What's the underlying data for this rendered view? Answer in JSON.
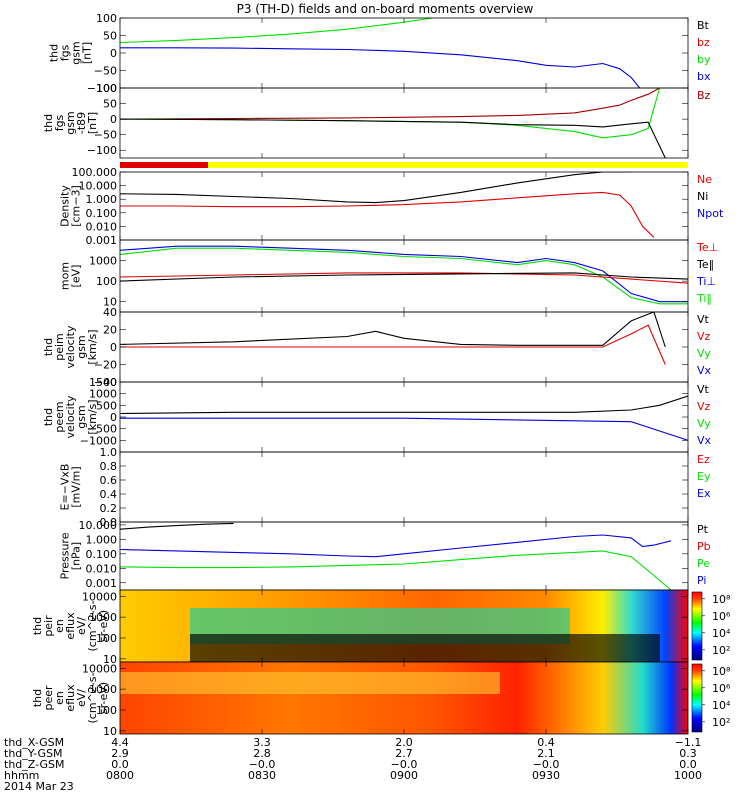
{
  "title": "P3 (TH-D) fields and on-board moments overview",
  "colors": {
    "black": "#000000",
    "red": "#e00000",
    "green": "#00e000",
    "blue": "#0000e0",
    "darkred": "#a00000",
    "yellow": "#ffff00"
  },
  "chart_data": [
    {
      "type": "line",
      "ylabel_lines": [
        "thd",
        "fgs",
        "gsm",
        "[nT]"
      ],
      "ylim": [
        -100,
        100
      ],
      "yscale": "linear",
      "yticks": [
        "100",
        "50",
        "0",
        "−50",
        "−100"
      ],
      "ytick_values": [
        100,
        50,
        0,
        -50,
        -100
      ],
      "legend": [
        {
          "label": "Bt",
          "color": "black"
        },
        {
          "label": "bz",
          "color": "red"
        },
        {
          "label": "by",
          "color": "green"
        },
        {
          "label": "bx",
          "color": "blue"
        }
      ],
      "series": [
        {
          "name": "by",
          "color": "green",
          "x": [
            0,
            0.1,
            0.2,
            0.3,
            0.4,
            0.5,
            0.55
          ],
          "y": [
            30,
            36,
            44,
            54,
            68,
            88,
            100
          ]
        },
        {
          "name": "bx",
          "color": "blue",
          "x": [
            0,
            0.1,
            0.2,
            0.3,
            0.4,
            0.5,
            0.6,
            0.7,
            0.75,
            0.8,
            0.85,
            0.88,
            0.9,
            0.915
          ],
          "y": [
            15,
            15,
            14,
            12,
            10,
            5,
            -5,
            -22,
            -35,
            -40,
            -30,
            -45,
            -70,
            -100
          ]
        }
      ]
    },
    {
      "type": "line",
      "ylabel_lines": [
        "thd",
        "fgs",
        "gsm",
        "-t89",
        "[nT]"
      ],
      "ylim": [
        -125,
        100
      ],
      "yscale": "linear",
      "yticks": [
        "100",
        "50",
        "0",
        "−50",
        "−100"
      ],
      "ytick_values": [
        100,
        50,
        0,
        -50,
        -100
      ],
      "legend": [
        {
          "label": "Bz",
          "color": "darkred"
        }
      ],
      "series": [
        {
          "name": "Bz",
          "color": "darkred",
          "x": [
            0,
            0.2,
            0.4,
            0.6,
            0.7,
            0.8,
            0.85,
            0.88,
            0.9,
            0.93,
            0.95
          ],
          "y": [
            0,
            2,
            4,
            8,
            12,
            20,
            35,
            45,
            60,
            80,
            100
          ]
        },
        {
          "name": "Bz-green",
          "color": "green",
          "x": [
            0,
            0.2,
            0.4,
            0.6,
            0.7,
            0.8,
            0.85,
            0.9,
            0.93,
            0.95
          ],
          "y": [
            0,
            -2,
            -5,
            -10,
            -20,
            -40,
            -60,
            -50,
            -30,
            100
          ]
        },
        {
          "name": "Bz-black",
          "color": "black",
          "x": [
            0,
            0.2,
            0.4,
            0.6,
            0.7,
            0.8,
            0.85,
            0.9,
            0.93,
            0.96
          ],
          "y": [
            0,
            -2,
            -5,
            -10,
            -18,
            -20,
            -25,
            -15,
            -10,
            -125
          ]
        }
      ]
    },
    {
      "type": "line",
      "ylabel_lines": [
        "Density",
        "[cm−3]"
      ],
      "ylim": [
        -3,
        2
      ],
      "yscale": "log10",
      "yticks": [
        "100.000",
        "10.000",
        "1.000",
        "0.100",
        "0.010",
        "0.001"
      ],
      "ytick_values": [
        2,
        1,
        0,
        -1,
        -2,
        -3
      ],
      "legend": [
        {
          "label": "Ne",
          "color": "red"
        },
        {
          "label": "Ni",
          "color": "black"
        },
        {
          "label": "Npot",
          "color": "blue"
        }
      ],
      "series": [
        {
          "name": "Ni",
          "color": "black",
          "x": [
            0,
            0.1,
            0.2,
            0.3,
            0.4,
            0.45,
            0.5,
            0.6,
            0.7,
            0.8,
            0.85,
            0.9
          ],
          "y": [
            0.4,
            0.35,
            0.2,
            0.05,
            -0.2,
            -0.25,
            -0.1,
            0.5,
            1.2,
            1.8,
            2.0,
            2.0
          ]
        },
        {
          "name": "Ne",
          "color": "red",
          "x": [
            0,
            0.1,
            0.2,
            0.3,
            0.4,
            0.5,
            0.6,
            0.7,
            0.8,
            0.85,
            0.88,
            0.9,
            0.92,
            0.94
          ],
          "y": [
            -0.5,
            -0.5,
            -0.55,
            -0.55,
            -0.5,
            -0.4,
            -0.2,
            0.1,
            0.4,
            0.5,
            0.3,
            -0.5,
            -2.0,
            -2.8
          ]
        }
      ]
    },
    {
      "type": "line",
      "ylabel_lines": [
        "mom",
        "[eV]"
      ],
      "ylim": [
        0.5,
        4
      ],
      "yscale": "log10",
      "yticks": [
        "1000",
        "100",
        "10"
      ],
      "ytick_values": [
        3,
        2,
        1
      ],
      "legend": [
        {
          "label": "Te⊥",
          "color": "red"
        },
        {
          "label": "Te‖",
          "color": "black"
        },
        {
          "label": "Ti⊥",
          "color": "blue"
        },
        {
          "label": "Ti‖",
          "color": "green"
        }
      ],
      "series": [
        {
          "name": "Ti",
          "color": "blue",
          "x": [
            0,
            0.1,
            0.2,
            0.3,
            0.4,
            0.5,
            0.6,
            0.7,
            0.75,
            0.8,
            0.85,
            0.9,
            0.95,
            1.0
          ],
          "y": [
            3.5,
            3.7,
            3.7,
            3.6,
            3.5,
            3.3,
            3.2,
            2.9,
            3.1,
            2.9,
            2.5,
            1.4,
            1.0,
            1.0
          ]
        },
        {
          "name": "Ti-green",
          "color": "green",
          "x": [
            0,
            0.1,
            0.2,
            0.3,
            0.4,
            0.5,
            0.6,
            0.7,
            0.75,
            0.8,
            0.85,
            0.9,
            0.95,
            1.0
          ],
          "y": [
            3.3,
            3.6,
            3.6,
            3.5,
            3.4,
            3.2,
            3.1,
            2.8,
            3.0,
            2.8,
            2.2,
            1.2,
            0.9,
            0.9
          ]
        },
        {
          "name": "Te-red",
          "color": "red",
          "x": [
            0,
            0.2,
            0.4,
            0.6,
            0.8,
            0.9,
            1.0
          ],
          "y": [
            2.2,
            2.3,
            2.4,
            2.4,
            2.3,
            2.1,
            1.9
          ]
        },
        {
          "name": "Te-black",
          "color": "black",
          "x": [
            0,
            0.2,
            0.4,
            0.6,
            0.8,
            0.9,
            1.0
          ],
          "y": [
            2.0,
            2.2,
            2.3,
            2.35,
            2.4,
            2.2,
            2.1
          ]
        }
      ]
    },
    {
      "type": "line",
      "ylabel_lines": [
        "thd",
        "peim",
        "velocity",
        "gsm",
        "[km/s]"
      ],
      "ylim": [
        -40,
        40
      ],
      "yscale": "linear",
      "yticks": [
        "40",
        "20",
        "0",
        "−20",
        "−40"
      ],
      "ytick_values": [
        40,
        20,
        0,
        -20,
        -40
      ],
      "legend": [
        {
          "label": "Vt",
          "color": "black"
        },
        {
          "label": "Vz",
          "color": "red"
        },
        {
          "label": "Vy",
          "color": "green"
        },
        {
          "label": "Vx",
          "color": "blue"
        }
      ],
      "series": [
        {
          "name": "Vt",
          "color": "black",
          "x": [
            0,
            0.2,
            0.4,
            0.45,
            0.5,
            0.6,
            0.7,
            0.85,
            0.9,
            0.94,
            0.96
          ],
          "y": [
            3,
            6,
            12,
            18,
            10,
            3,
            2,
            2,
            30,
            40,
            0
          ]
        },
        {
          "name": "Vz",
          "color": "red",
          "x": [
            0,
            0.5,
            0.85,
            0.9,
            0.93,
            0.96
          ],
          "y": [
            0,
            0,
            0,
            15,
            25,
            -20
          ]
        }
      ]
    },
    {
      "type": "line",
      "ylabel_lines": [
        "thd",
        "peem",
        "velocity",
        "gsm",
        "[km/s]"
      ],
      "ylim": [
        -1500,
        1500
      ],
      "yscale": "linear",
      "yticks": [
        "1500",
        "1000",
        "500",
        "0",
        "−500",
        "−1000"
      ],
      "ytick_values": [
        1500,
        1000,
        500,
        0,
        -500,
        -1000
      ],
      "legend": [
        {
          "label": "Vt",
          "color": "black"
        },
        {
          "label": "Vz",
          "color": "red"
        },
        {
          "label": "Vy",
          "color": "green"
        },
        {
          "label": "Vx",
          "color": "blue"
        }
      ],
      "series": [
        {
          "name": "Vt",
          "color": "black",
          "x": [
            0,
            0.2,
            0.5,
            0.8,
            0.9,
            0.95,
            1.0
          ],
          "y": [
            150,
            200,
            200,
            200,
            300,
            500,
            900
          ]
        },
        {
          "name": "Vx",
          "color": "blue",
          "x": [
            0,
            0.5,
            0.9,
            0.95,
            1.0
          ],
          "y": [
            -50,
            -50,
            -200,
            -600,
            -1000
          ]
        }
      ]
    },
    {
      "type": "line",
      "ylabel_lines": [
        "E=−VxB",
        "[mV/m]"
      ],
      "ylim": [
        0,
        1
      ],
      "yscale": "linear",
      "yticks": [
        "1.0",
        "0.8",
        "0.6",
        "0.4",
        "0.2",
        "0.0"
      ],
      "ytick_values": [
        1.0,
        0.8,
        0.6,
        0.4,
        0.2,
        0.0
      ],
      "legend": [
        {
          "label": "Ez",
          "color": "red"
        },
        {
          "label": "Ey",
          "color": "green"
        },
        {
          "label": "Ex",
          "color": "blue"
        }
      ],
      "series": []
    },
    {
      "type": "line",
      "ylabel_lines": [
        "Pressure",
        "[nPa]"
      ],
      "ylim": [
        -3.5,
        1.2
      ],
      "yscale": "log10",
      "yticks": [
        "10.000",
        "1.000",
        "0.100",
        "0.010",
        "0.001"
      ],
      "ytick_values": [
        1,
        0,
        -1,
        -2,
        -3
      ],
      "legend": [
        {
          "label": "Pt",
          "color": "black"
        },
        {
          "label": "Pb",
          "color": "red"
        },
        {
          "label": "Pe",
          "color": "green"
        },
        {
          "label": "Pi",
          "color": "blue"
        }
      ],
      "series": [
        {
          "name": "Pt",
          "color": "black",
          "x": [
            0,
            0.05,
            0.1,
            0.15,
            0.2
          ],
          "y": [
            0.7,
            0.85,
            0.95,
            1.05,
            1.1
          ]
        },
        {
          "name": "Pi",
          "color": "blue",
          "x": [
            0,
            0.1,
            0.2,
            0.3,
            0.4,
            0.45,
            0.5,
            0.6,
            0.7,
            0.8,
            0.85,
            0.9,
            0.92,
            0.94,
            0.97
          ],
          "y": [
            -0.7,
            -0.8,
            -0.9,
            -1.0,
            -1.15,
            -1.2,
            -1.0,
            -0.6,
            -0.2,
            0.2,
            0.3,
            0.1,
            -0.5,
            -0.4,
            -0.1
          ]
        },
        {
          "name": "Pe",
          "color": "green",
          "x": [
            0,
            0.1,
            0.2,
            0.3,
            0.4,
            0.5,
            0.6,
            0.7,
            0.8,
            0.85,
            0.9,
            0.94,
            0.97
          ],
          "y": [
            -1.9,
            -1.95,
            -1.95,
            -1.9,
            -1.8,
            -1.7,
            -1.4,
            -1.1,
            -0.9,
            -0.8,
            -1.2,
            -2.5,
            -3.5
          ]
        }
      ]
    },
    {
      "type": "heatmap",
      "ylabel_lines": [
        "thd",
        "peir",
        "en",
        "eflux",
        "eV/",
        "(cm^2-s-",
        "sr-eV)"
      ],
      "yticks": [
        "10000",
        "1000",
        "100",
        "10"
      ],
      "ytick_values": [
        4,
        3,
        2,
        1
      ],
      "colorbar_ticks": [
        "10⁸",
        "10⁶",
        "10⁴",
        "10²"
      ],
      "colorbar_values": [
        8,
        6,
        4,
        2
      ]
    },
    {
      "type": "heatmap",
      "ylabel_lines": [
        "thd",
        "peer",
        "en",
        "eflux",
        "eV/",
        "(cm^2-s-",
        "sr-eV)"
      ],
      "yticks": [
        "10000",
        "1000",
        "100",
        "10"
      ],
      "ytick_values": [
        4,
        3,
        2,
        1
      ],
      "colorbar_ticks": [
        "10⁸",
        "10⁶",
        "10⁴",
        "10²"
      ],
      "colorbar_values": [
        8,
        6,
        4,
        2
      ]
    }
  ],
  "time_axis": {
    "ticks": [
      "0800",
      "0830",
      "0900",
      "0930",
      "1000"
    ],
    "rows": [
      {
        "label": "thd_X-GSM",
        "values": [
          "4.4",
          "3.3",
          "2.0",
          "0.4",
          "−1.1"
        ]
      },
      {
        "label": "thd_Y-GSM",
        "values": [
          "2.9",
          "2.8",
          "2.7",
          "2.1",
          "0.3"
        ]
      },
      {
        "label": "thd_Z-GSM",
        "values": [
          "0.0",
          "−0.0",
          "−0.0",
          "−0.0",
          "0.0"
        ]
      }
    ],
    "hhmm_label": "hhmm",
    "date": "2014 Mar 23"
  }
}
